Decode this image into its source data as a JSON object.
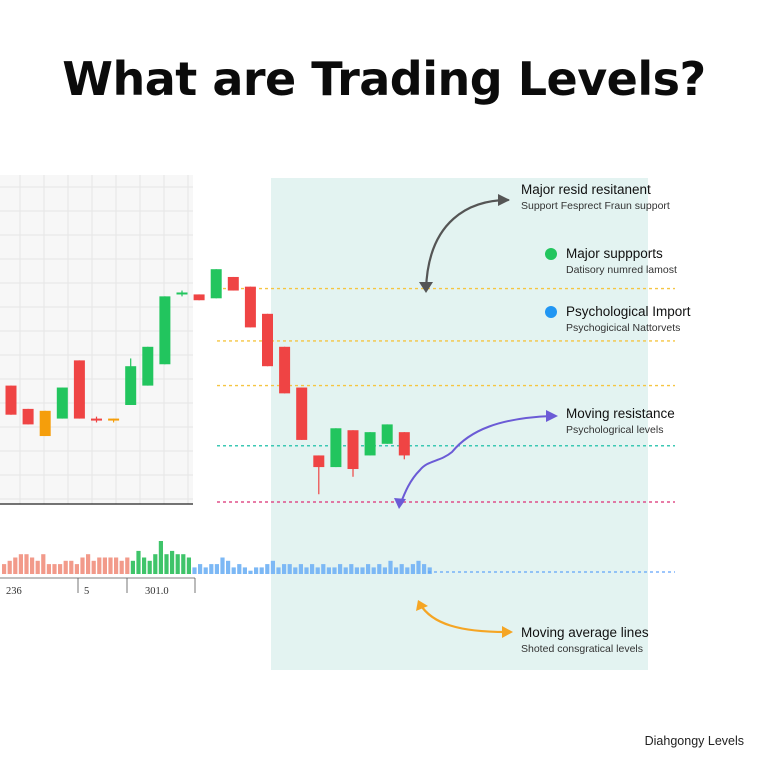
{
  "title": "What are Trading Levels?",
  "footer": "Diahgongy Levels",
  "colors": {
    "up": "#22c55e",
    "down": "#ef4444",
    "neutral": "#f59e0b",
    "panel": "#e3f3f1",
    "yellow_level": "#f5c542",
    "teal_level": "#3cc8b4",
    "pink_level": "#e0508a",
    "blue_level": "#60a5fa",
    "arrow_gray": "#555555",
    "arrow_purple": "#6b5bd6",
    "arrow_orange": "#f5a524",
    "dot_green": "#22c55e",
    "dot_blue": "#2196f3"
  },
  "annotations": [
    {
      "title": "Major resid resitanent",
      "sub": "Support Fesprect Fraun support",
      "dot": null
    },
    {
      "title": "Major suppports",
      "sub": "Datisory numred lamost",
      "dot": "dot_green"
    },
    {
      "title": "Psychological Import",
      "sub": "Psychogicical Nattorvets",
      "dot": "dot_blue"
    },
    {
      "title": "Moving resistance",
      "sub": "Psychologrical levels",
      "dot": null
    },
    {
      "title": "Moving average lines",
      "sub": "Shoted consgratical levels",
      "dot": null
    }
  ],
  "chart_data": {
    "type": "candlestick",
    "x_tick_labels": [
      "236",
      "5",
      "301.0"
    ],
    "grid": true,
    "candles": [
      {
        "o": 6.0,
        "c": 4.5,
        "h": 6.0,
        "l": 4.5,
        "dir": "down"
      },
      {
        "o": 4.8,
        "c": 4.0,
        "h": 4.8,
        "l": 4.0,
        "dir": "down"
      },
      {
        "o": 4.7,
        "c": 3.4,
        "h": 4.7,
        "l": 3.4,
        "dir": "neutral"
      },
      {
        "o": 4.3,
        "c": 5.9,
        "h": 5.9,
        "l": 4.3,
        "dir": "up"
      },
      {
        "o": 7.3,
        "c": 4.3,
        "h": 7.3,
        "l": 4.3,
        "dir": "down"
      },
      {
        "o": 4.3,
        "c": 4.2,
        "h": 4.4,
        "l": 4.1,
        "dir": "down"
      },
      {
        "o": 4.3,
        "c": 4.2,
        "h": 4.3,
        "l": 4.1,
        "dir": "neutral"
      },
      {
        "o": 5.0,
        "c": 7.0,
        "h": 7.4,
        "l": 5.0,
        "dir": "up"
      },
      {
        "o": 6.0,
        "c": 8.0,
        "h": 8.0,
        "l": 6.0,
        "dir": "up"
      },
      {
        "o": 7.1,
        "c": 10.6,
        "h": 10.6,
        "l": 7.1,
        "dir": "up"
      },
      {
        "o": 10.7,
        "c": 10.8,
        "h": 10.9,
        "l": 10.6,
        "dir": "up"
      },
      {
        "o": 10.7,
        "c": 10.4,
        "h": 10.7,
        "l": 10.4,
        "dir": "down"
      },
      {
        "o": 10.5,
        "c": 12.0,
        "h": 12.0,
        "l": 10.5,
        "dir": "up"
      },
      {
        "o": 11.6,
        "c": 10.9,
        "h": 11.6,
        "l": 10.9,
        "dir": "down"
      },
      {
        "o": 11.1,
        "c": 9.0,
        "h": 11.1,
        "l": 9.0,
        "dir": "down"
      },
      {
        "o": 9.7,
        "c": 7.0,
        "h": 9.7,
        "l": 7.0,
        "dir": "down"
      },
      {
        "o": 8.0,
        "c": 5.6,
        "h": 8.0,
        "l": 5.6,
        "dir": "down"
      },
      {
        "o": 5.9,
        "c": 3.2,
        "h": 5.9,
        "l": 3.2,
        "dir": "down"
      },
      {
        "o": 2.4,
        "c": 1.8,
        "h": 2.4,
        "l": 0.4,
        "dir": "down"
      },
      {
        "o": 1.8,
        "c": 3.8,
        "h": 3.8,
        "l": 1.8,
        "dir": "up"
      },
      {
        "o": 3.7,
        "c": 1.7,
        "h": 3.7,
        "l": 1.3,
        "dir": "down"
      },
      {
        "o": 2.4,
        "c": 3.6,
        "h": 3.6,
        "l": 2.4,
        "dir": "up"
      },
      {
        "o": 3.0,
        "c": 4.0,
        "h": 4.0,
        "l": 3.0,
        "dir": "up"
      },
      {
        "o": 3.6,
        "c": 2.4,
        "h": 3.6,
        "l": 2.2,
        "dir": "down"
      }
    ],
    "volume": [
      {
        "v": 3,
        "c": "down"
      },
      {
        "v": 4,
        "c": "down"
      },
      {
        "v": 5,
        "c": "down"
      },
      {
        "v": 6,
        "c": "down"
      },
      {
        "v": 6,
        "c": "down"
      },
      {
        "v": 5,
        "c": "down"
      },
      {
        "v": 4,
        "c": "down"
      },
      {
        "v": 6,
        "c": "down"
      },
      {
        "v": 3,
        "c": "down"
      },
      {
        "v": 3,
        "c": "down"
      },
      {
        "v": 3,
        "c": "down"
      },
      {
        "v": 4,
        "c": "down"
      },
      {
        "v": 4,
        "c": "down"
      },
      {
        "v": 3,
        "c": "down"
      },
      {
        "v": 5,
        "c": "down"
      },
      {
        "v": 6,
        "c": "down"
      },
      {
        "v": 4,
        "c": "down"
      },
      {
        "v": 5,
        "c": "down"
      },
      {
        "v": 5,
        "c": "down"
      },
      {
        "v": 5,
        "c": "down"
      },
      {
        "v": 5,
        "c": "down"
      },
      {
        "v": 4,
        "c": "down"
      },
      {
        "v": 5,
        "c": "down"
      },
      {
        "v": 4,
        "c": "up"
      },
      {
        "v": 7,
        "c": "up"
      },
      {
        "v": 5,
        "c": "up"
      },
      {
        "v": 4,
        "c": "up"
      },
      {
        "v": 6,
        "c": "up"
      },
      {
        "v": 10,
        "c": "up"
      },
      {
        "v": 6,
        "c": "up"
      },
      {
        "v": 7,
        "c": "up"
      },
      {
        "v": 6,
        "c": "up"
      },
      {
        "v": 6,
        "c": "up"
      },
      {
        "v": 5,
        "c": "up"
      },
      {
        "v": 2,
        "c": "blue"
      },
      {
        "v": 3,
        "c": "blue"
      },
      {
        "v": 2,
        "c": "blue"
      },
      {
        "v": 3,
        "c": "blue"
      },
      {
        "v": 3,
        "c": "blue"
      },
      {
        "v": 5,
        "c": "blue"
      },
      {
        "v": 4,
        "c": "blue"
      },
      {
        "v": 2,
        "c": "blue"
      },
      {
        "v": 3,
        "c": "blue"
      },
      {
        "v": 2,
        "c": "blue"
      },
      {
        "v": 1,
        "c": "blue"
      },
      {
        "v": 2,
        "c": "blue"
      },
      {
        "v": 2,
        "c": "blue"
      },
      {
        "v": 3,
        "c": "blue"
      },
      {
        "v": 4,
        "c": "blue"
      },
      {
        "v": 2,
        "c": "blue"
      },
      {
        "v": 3,
        "c": "blue"
      },
      {
        "v": 3,
        "c": "blue"
      },
      {
        "v": 2,
        "c": "blue"
      },
      {
        "v": 3,
        "c": "blue"
      },
      {
        "v": 2,
        "c": "blue"
      },
      {
        "v": 3,
        "c": "blue"
      },
      {
        "v": 2,
        "c": "blue"
      },
      {
        "v": 3,
        "c": "blue"
      },
      {
        "v": 2,
        "c": "blue"
      },
      {
        "v": 2,
        "c": "blue"
      },
      {
        "v": 3,
        "c": "blue"
      },
      {
        "v": 2,
        "c": "blue"
      },
      {
        "v": 3,
        "c": "blue"
      },
      {
        "v": 2,
        "c": "blue"
      },
      {
        "v": 2,
        "c": "blue"
      },
      {
        "v": 3,
        "c": "blue"
      },
      {
        "v": 2,
        "c": "blue"
      },
      {
        "v": 3,
        "c": "blue"
      },
      {
        "v": 2,
        "c": "blue"
      },
      {
        "v": 4,
        "c": "blue"
      },
      {
        "v": 2,
        "c": "blue"
      },
      {
        "v": 3,
        "c": "blue"
      },
      {
        "v": 2,
        "c": "blue"
      },
      {
        "v": 3,
        "c": "blue"
      },
      {
        "v": 4,
        "c": "blue"
      },
      {
        "v": 3,
        "c": "blue"
      },
      {
        "v": 2,
        "c": "blue"
      }
    ],
    "levels": [
      {
        "value": 11.0,
        "color": "yellow_level"
      },
      {
        "value": 8.3,
        "color": "yellow_level"
      },
      {
        "value": 6.0,
        "color": "yellow_level"
      },
      {
        "value": 2.9,
        "color": "teal_level"
      },
      {
        "value": 0.0,
        "color": "pink_level"
      }
    ]
  }
}
